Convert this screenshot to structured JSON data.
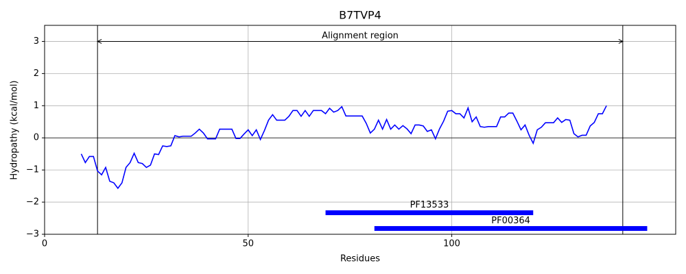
{
  "chart_data": {
    "type": "line",
    "title": "B7TVP4",
    "xlabel": "Residues",
    "ylabel": "Hydropathy (kcal/mol)",
    "xlim": [
      0,
      155
    ],
    "ylim": [
      -3,
      3.5
    ],
    "xticks": [
      0,
      50,
      100
    ],
    "yticks": [
      {
        "value": -3,
        "label": "−3"
      },
      {
        "value": -2,
        "label": "−2"
      },
      {
        "value": -1,
        "label": "−1"
      },
      0,
      1,
      2,
      3
    ],
    "grid": true,
    "hline": 0,
    "color": "#0000ff",
    "x": [
      9,
      10,
      11,
      12,
      13,
      14,
      15,
      16,
      17,
      18,
      19,
      20,
      21,
      22,
      23,
      24,
      25,
      26,
      27,
      28,
      29,
      30,
      31,
      32,
      33,
      34,
      35,
      36,
      37,
      38,
      39,
      40,
      41,
      42,
      43,
      44,
      45,
      46,
      47,
      48,
      49,
      50,
      51,
      52,
      53,
      54,
      55,
      56,
      57,
      58,
      59,
      60,
      61,
      62,
      63,
      64,
      65,
      66,
      67,
      68,
      69,
      70,
      71,
      72,
      73,
      74,
      75,
      76,
      77,
      78,
      79,
      80,
      81,
      82,
      83,
      84,
      85,
      86,
      87,
      88,
      89,
      90,
      91,
      92,
      93,
      94,
      95,
      96,
      97,
      98,
      99,
      100,
      101,
      102,
      103,
      104,
      105,
      106,
      107,
      108,
      109,
      110,
      111,
      112,
      113,
      114,
      115,
      116,
      117,
      118,
      119,
      120,
      121,
      122,
      123,
      124,
      125,
      126,
      127,
      128,
      129,
      130,
      131,
      132,
      133,
      134,
      135,
      136,
      137,
      138
    ],
    "values": [
      -0.5,
      -0.77,
      -0.58,
      -0.58,
      -1.03,
      -1.15,
      -0.92,
      -1.35,
      -1.4,
      -1.57,
      -1.4,
      -0.92,
      -0.77,
      -0.48,
      -0.77,
      -0.8,
      -0.92,
      -0.85,
      -0.5,
      -0.52,
      -0.25,
      -0.27,
      -0.25,
      0.07,
      0.03,
      0.05,
      0.05,
      0.05,
      0.15,
      0.27,
      0.15,
      -0.03,
      -0.03,
      -0.03,
      0.27,
      0.27,
      0.27,
      0.27,
      -0.02,
      -0.02,
      0.12,
      0.25,
      0.07,
      0.25,
      -0.05,
      0.23,
      0.55,
      0.72,
      0.55,
      0.55,
      0.55,
      0.67,
      0.85,
      0.85,
      0.67,
      0.85,
      0.67,
      0.85,
      0.85,
      0.85,
      0.75,
      0.92,
      0.8,
      0.85,
      0.97,
      0.68,
      0.68,
      0.68,
      0.68,
      0.68,
      0.45,
      0.15,
      0.27,
      0.55,
      0.27,
      0.57,
      0.27,
      0.4,
      0.27,
      0.38,
      0.28,
      0.13,
      0.4,
      0.4,
      0.37,
      0.2,
      0.25,
      -0.03,
      0.28,
      0.52,
      0.83,
      0.85,
      0.75,
      0.75,
      0.62,
      0.93,
      0.5,
      0.65,
      0.35,
      0.33,
      0.35,
      0.35,
      0.35,
      0.65,
      0.65,
      0.77,
      0.77,
      0.52,
      0.25,
      0.4,
      0.08,
      -0.17,
      0.25,
      0.33,
      0.47,
      0.47,
      0.47,
      0.62,
      0.48,
      0.57,
      0.55,
      0.13,
      0.03,
      0.08,
      0.08,
      0.37,
      0.48,
      0.75,
      0.75,
      1.0
    ],
    "vlines": [
      13,
      142
    ],
    "arrow": {
      "start": 13,
      "end": 142,
      "y": 3,
      "label": "Alignment region"
    },
    "domains": [
      {
        "label": "PF13533",
        "start": 69,
        "end": 120,
        "y": -2.33,
        "color": "#0000ff"
      },
      {
        "label": "PF00364",
        "start": 81,
        "end": 148,
        "y": -2.82,
        "color": "#0000ff"
      }
    ]
  }
}
